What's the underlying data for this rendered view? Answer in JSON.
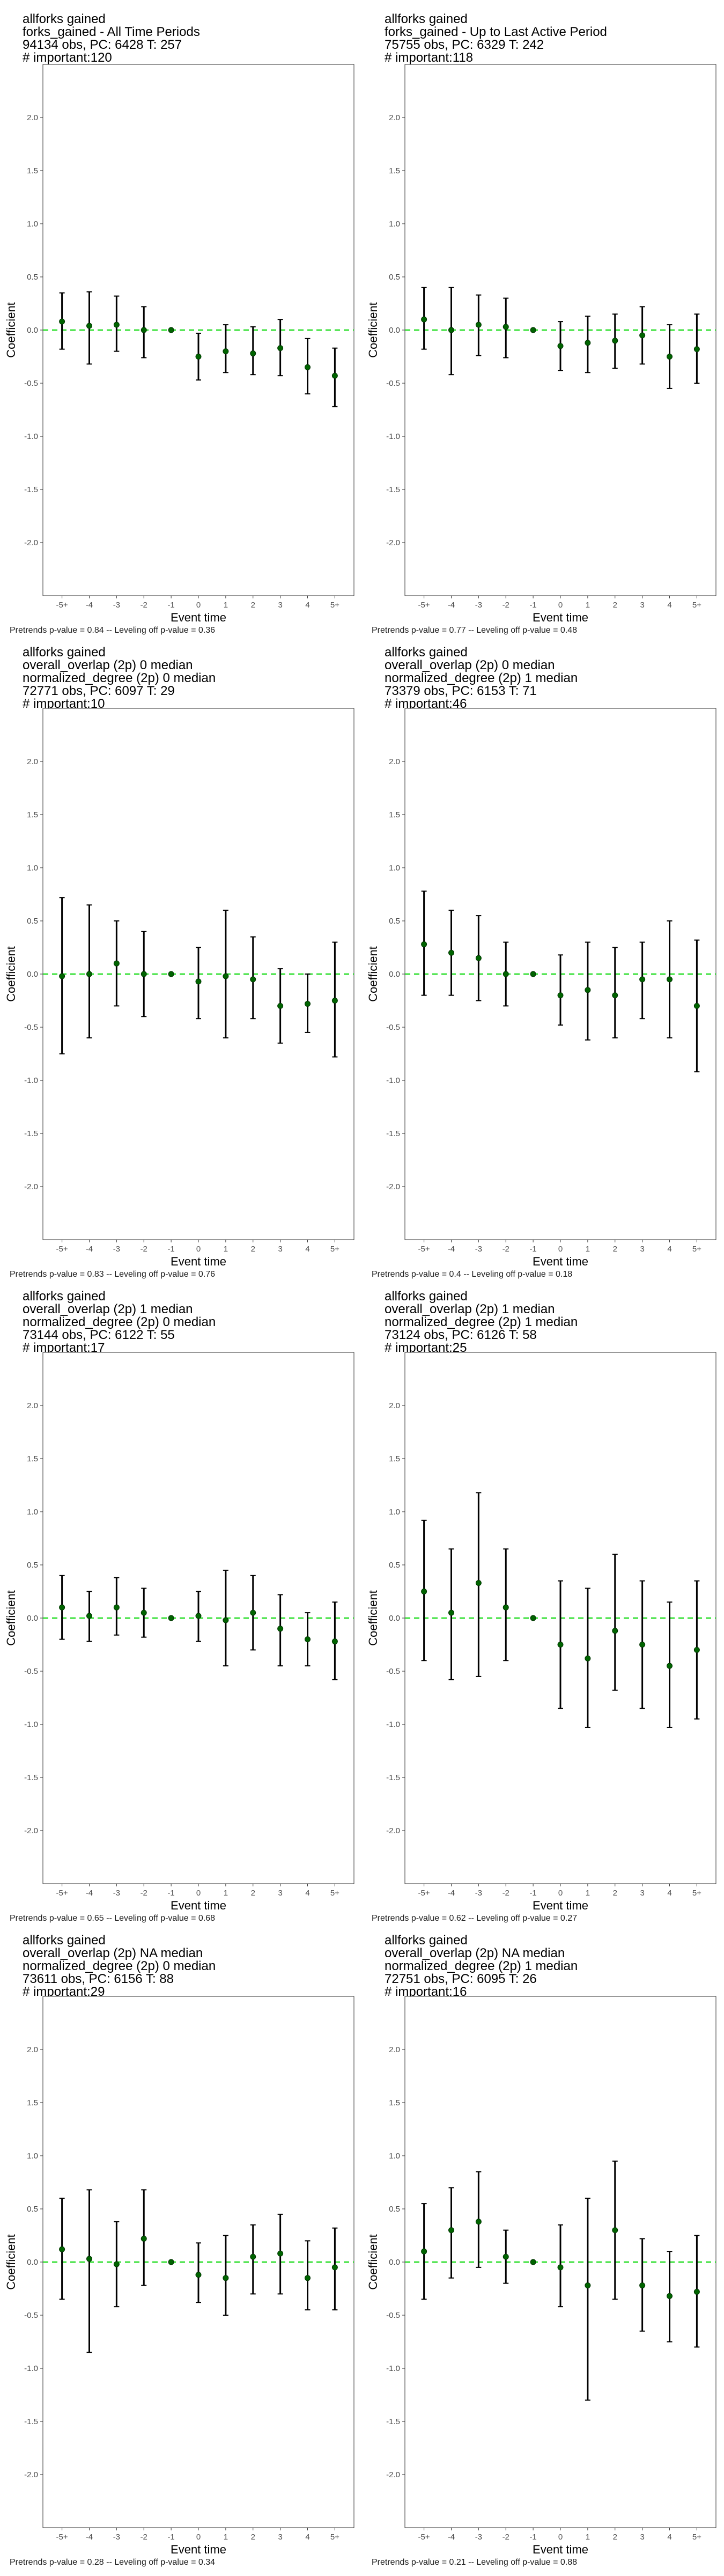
{
  "figure": {
    "xlabel": "Event time",
    "ylabel": "Coefficient"
  },
  "chart_data": [
    {
      "type": "scatter",
      "title": [
        "allforks gained",
        "forks_gained - All Time Periods",
        "94134 obs, PC: 6428 T: 257",
        "# important:120"
      ],
      "footnote": "Pretrends p-value = 0.84 -- Leveling off p-value = 0.36",
      "categories": [
        "-5+",
        "-4",
        "-3",
        "-2",
        "-1",
        "0",
        "1",
        "2",
        "3",
        "4",
        "5+"
      ],
      "xlabel": "Event time",
      "ylabel": "Coefficient",
      "ylim": [
        -2.5,
        2.5
      ],
      "yticks": [
        -2.0,
        -1.5,
        -1.0,
        -0.5,
        0.0,
        0.5,
        1.0,
        1.5,
        2.0
      ],
      "reference_line": 0,
      "series": [
        {
          "values": [
            0.08,
            0.04,
            0.05,
            0.0,
            0.0,
            -0.25,
            -0.2,
            -0.22,
            -0.17,
            -0.35,
            -0.43
          ],
          "ci_lower": [
            -0.18,
            -0.32,
            -0.2,
            -0.26,
            0.0,
            -0.47,
            -0.4,
            -0.42,
            -0.43,
            -0.6,
            -0.72
          ],
          "ci_upper": [
            0.35,
            0.36,
            0.32,
            0.22,
            0.0,
            -0.03,
            0.05,
            0.03,
            0.1,
            -0.08,
            -0.17
          ]
        }
      ]
    },
    {
      "type": "scatter",
      "title": [
        "allforks gained",
        "forks_gained - Up to Last Active Period",
        "75755 obs, PC: 6329 T: 242",
        "# important:118"
      ],
      "footnote": "Pretrends p-value = 0.77 -- Leveling off p-value = 0.48",
      "categories": [
        "-5+",
        "-4",
        "-3",
        "-2",
        "-1",
        "0",
        "1",
        "2",
        "3",
        "4",
        "5+"
      ],
      "xlabel": "Event time",
      "ylabel": "Coefficient",
      "ylim": [
        -2.5,
        2.5
      ],
      "yticks": [
        -2.0,
        -1.5,
        -1.0,
        -0.5,
        0.0,
        0.5,
        1.0,
        1.5,
        2.0
      ],
      "reference_line": 0,
      "series": [
        {
          "values": [
            0.1,
            0.0,
            0.05,
            0.03,
            0.0,
            -0.15,
            -0.12,
            -0.1,
            -0.05,
            -0.25,
            -0.18
          ],
          "ci_lower": [
            -0.18,
            -0.42,
            -0.24,
            -0.26,
            0.0,
            -0.38,
            -0.4,
            -0.36,
            -0.32,
            -0.55,
            -0.5
          ],
          "ci_upper": [
            0.4,
            0.4,
            0.33,
            0.3,
            0.0,
            0.08,
            0.13,
            0.15,
            0.22,
            0.05,
            0.15
          ]
        }
      ]
    },
    {
      "type": "scatter",
      "title": [
        "allforks gained",
        "overall_overlap (2p) 0 median",
        "normalized_degree (2p) 0 median",
        "72771 obs, PC: 6097 T: 29",
        "# important:10"
      ],
      "footnote": "Pretrends p-value = 0.83 -- Leveling off p-value = 0.76",
      "categories": [
        "-5+",
        "-4",
        "-3",
        "-2",
        "-1",
        "0",
        "1",
        "2",
        "3",
        "4",
        "5+"
      ],
      "xlabel": "Event time",
      "ylabel": "Coefficient",
      "ylim": [
        -2.5,
        2.5
      ],
      "yticks": [
        -2.0,
        -1.5,
        -1.0,
        -0.5,
        0.0,
        0.5,
        1.0,
        1.5,
        2.0
      ],
      "reference_line": 0,
      "series": [
        {
          "values": [
            -0.02,
            0.0,
            0.1,
            0.0,
            0.0,
            -0.07,
            -0.02,
            -0.05,
            -0.3,
            -0.28,
            -0.25
          ],
          "ci_lower": [
            -0.75,
            -0.6,
            -0.3,
            -0.4,
            0.0,
            -0.42,
            -0.6,
            -0.42,
            -0.65,
            -0.55,
            -0.78
          ],
          "ci_upper": [
            0.72,
            0.65,
            0.5,
            0.4,
            0.0,
            0.25,
            0.6,
            0.35,
            0.05,
            0.0,
            0.3
          ]
        }
      ]
    },
    {
      "type": "scatter",
      "title": [
        "allforks gained",
        "overall_overlap (2p) 0 median",
        "normalized_degree (2p) 1 median",
        "73379 obs, PC: 6153 T: 71",
        "# important:46"
      ],
      "footnote": "Pretrends p-value = 0.4 -- Leveling off p-value = 0.18",
      "categories": [
        "-5+",
        "-4",
        "-3",
        "-2",
        "-1",
        "0",
        "1",
        "2",
        "3",
        "4",
        "5+"
      ],
      "xlabel": "Event time",
      "ylabel": "Coefficient",
      "ylim": [
        -2.5,
        2.5
      ],
      "yticks": [
        -2.0,
        -1.5,
        -1.0,
        -0.5,
        0.0,
        0.5,
        1.0,
        1.5,
        2.0
      ],
      "reference_line": 0,
      "series": [
        {
          "values": [
            0.28,
            0.2,
            0.15,
            0.0,
            0.0,
            -0.2,
            -0.15,
            -0.2,
            -0.05,
            -0.05,
            -0.3
          ],
          "ci_lower": [
            -0.2,
            -0.2,
            -0.25,
            -0.3,
            0.0,
            -0.48,
            -0.62,
            -0.6,
            -0.42,
            -0.6,
            -0.92
          ],
          "ci_upper": [
            0.78,
            0.6,
            0.55,
            0.3,
            0.0,
            0.18,
            0.3,
            0.25,
            0.3,
            0.5,
            0.32
          ]
        }
      ]
    },
    {
      "type": "scatter",
      "title": [
        "allforks gained",
        "overall_overlap (2p) 1 median",
        "normalized_degree (2p) 0 median",
        "73144 obs, PC: 6122 T: 55",
        "# important:17"
      ],
      "footnote": "Pretrends p-value = 0.65 -- Leveling off p-value = 0.68",
      "categories": [
        "-5+",
        "-4",
        "-3",
        "-2",
        "-1",
        "0",
        "1",
        "2",
        "3",
        "4",
        "5+"
      ],
      "xlabel": "Event time",
      "ylabel": "Coefficient",
      "ylim": [
        -2.5,
        2.5
      ],
      "yticks": [
        -2.0,
        -1.5,
        -1.0,
        -0.5,
        0.0,
        0.5,
        1.0,
        1.5,
        2.0
      ],
      "reference_line": 0,
      "series": [
        {
          "values": [
            0.1,
            0.02,
            0.1,
            0.05,
            0.0,
            0.02,
            -0.02,
            0.05,
            -0.1,
            -0.2,
            -0.22
          ],
          "ci_lower": [
            -0.2,
            -0.22,
            -0.16,
            -0.18,
            0.0,
            -0.22,
            -0.45,
            -0.3,
            -0.45,
            -0.45,
            -0.58
          ],
          "ci_upper": [
            0.4,
            0.25,
            0.38,
            0.28,
            0.0,
            0.25,
            0.45,
            0.4,
            0.22,
            0.05,
            0.15
          ]
        }
      ]
    },
    {
      "type": "scatter",
      "title": [
        "allforks gained",
        "overall_overlap (2p) 1 median",
        "normalized_degree (2p) 1 median",
        "73124 obs, PC: 6126 T: 58",
        "# important:25"
      ],
      "footnote": "Pretrends p-value = 0.62 -- Leveling off p-value = 0.27",
      "categories": [
        "-5+",
        "-4",
        "-3",
        "-2",
        "-1",
        "0",
        "1",
        "2",
        "3",
        "4",
        "5+"
      ],
      "xlabel": "Event time",
      "ylabel": "Coefficient",
      "ylim": [
        -2.5,
        2.5
      ],
      "yticks": [
        -2.0,
        -1.5,
        -1.0,
        -0.5,
        0.0,
        0.5,
        1.0,
        1.5,
        2.0
      ],
      "reference_line": 0,
      "series": [
        {
          "values": [
            0.25,
            0.05,
            0.33,
            0.1,
            0.0,
            -0.25,
            -0.38,
            -0.12,
            -0.25,
            -0.45,
            -0.3
          ],
          "ci_lower": [
            -0.4,
            -0.58,
            -0.55,
            -0.4,
            0.0,
            -0.85,
            -1.03,
            -0.68,
            -0.85,
            -1.03,
            -0.95
          ],
          "ci_upper": [
            0.92,
            0.65,
            1.18,
            0.65,
            0.0,
            0.35,
            0.28,
            0.6,
            0.35,
            0.15,
            0.35
          ]
        }
      ]
    },
    {
      "type": "scatter",
      "title": [
        "allforks gained",
        "overall_overlap (2p) NA median",
        "normalized_degree (2p) 0 median",
        "73611 obs, PC: 6156 T: 88",
        "# important:29"
      ],
      "footnote": "Pretrends p-value = 0.28 -- Leveling off p-value = 0.34",
      "categories": [
        "-5+",
        "-4",
        "-3",
        "-2",
        "-1",
        "0",
        "1",
        "2",
        "3",
        "4",
        "5+"
      ],
      "xlabel": "Event time",
      "ylabel": "Coefficient",
      "ylim": [
        -2.5,
        2.5
      ],
      "yticks": [
        -2.0,
        -1.5,
        -1.0,
        -0.5,
        0.0,
        0.5,
        1.0,
        1.5,
        2.0
      ],
      "reference_line": 0,
      "series": [
        {
          "values": [
            0.12,
            0.03,
            -0.02,
            0.22,
            0.0,
            -0.12,
            -0.15,
            0.05,
            0.08,
            -0.15,
            -0.05
          ],
          "ci_lower": [
            -0.35,
            -0.85,
            -0.42,
            -0.22,
            0.0,
            -0.38,
            -0.5,
            -0.3,
            -0.3,
            -0.45,
            -0.45
          ],
          "ci_upper": [
            0.6,
            0.68,
            0.38,
            0.68,
            0.0,
            0.18,
            0.25,
            0.35,
            0.45,
            0.2,
            0.32
          ]
        }
      ]
    },
    {
      "type": "scatter",
      "title": [
        "allforks gained",
        "overall_overlap (2p) NA median",
        "normalized_degree (2p) 1 median",
        "72751 obs, PC: 6095 T: 26",
        "# important:16"
      ],
      "footnote": "Pretrends p-value = 0.21 -- Leveling off p-value = 0.88",
      "categories": [
        "-5+",
        "-4",
        "-3",
        "-2",
        "-1",
        "0",
        "1",
        "2",
        "3",
        "4",
        "5+"
      ],
      "xlabel": "Event time",
      "ylabel": "Coefficient",
      "ylim": [
        -2.5,
        2.5
      ],
      "yticks": [
        -2.0,
        -1.5,
        -1.0,
        -0.5,
        0.0,
        0.5,
        1.0,
        1.5,
        2.0
      ],
      "reference_line": 0,
      "series": [
        {
          "values": [
            0.1,
            0.3,
            0.38,
            0.05,
            0.0,
            -0.05,
            -0.22,
            0.3,
            -0.22,
            -0.32,
            -0.28
          ],
          "ci_lower": [
            -0.35,
            -0.15,
            -0.05,
            -0.2,
            0.0,
            -0.42,
            -1.3,
            -0.35,
            -0.65,
            -0.75,
            -0.8
          ],
          "ci_upper": [
            0.55,
            0.7,
            0.85,
            0.3,
            0.0,
            0.35,
            0.6,
            0.95,
            0.22,
            0.1,
            0.25
          ]
        }
      ]
    }
  ]
}
